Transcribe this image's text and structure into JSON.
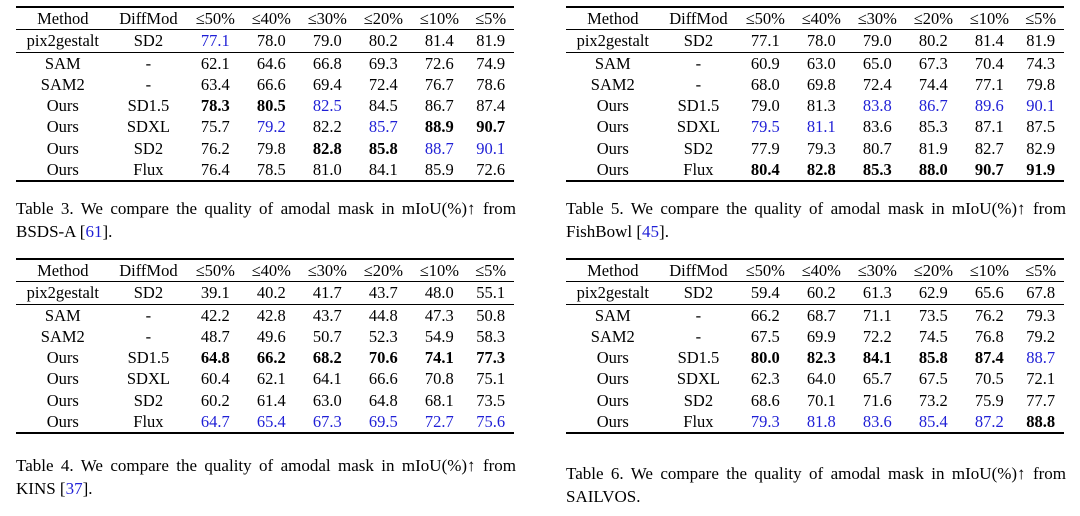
{
  "headers": [
    "Method",
    "DiffMod",
    "≤50%",
    "≤40%",
    "≤30%",
    "≤20%",
    "≤10%",
    "≤5%"
  ],
  "tables": [
    {
      "id": "table3",
      "rows": [
        {
          "cells": [
            "pix2gestalt",
            "SD2",
            "77.1",
            "78.0",
            "79.0",
            "80.2",
            "81.4",
            "81.9"
          ],
          "styles": [
            "",
            "",
            "blue",
            "",
            "",
            "",
            "",
            ""
          ],
          "sep": true
        },
        {
          "cells": [
            "SAM",
            "-",
            "62.1",
            "64.6",
            "66.8",
            "69.3",
            "72.6",
            "74.9"
          ],
          "styles": [
            "",
            "",
            "",
            "",
            "",
            "",
            "",
            ""
          ],
          "sep": true
        },
        {
          "cells": [
            "SAM2",
            "-",
            "63.4",
            "66.6",
            "69.4",
            "72.4",
            "76.7",
            "78.6"
          ],
          "styles": [
            "",
            "",
            "",
            "",
            "",
            "",
            "",
            ""
          ],
          "sep": false
        },
        {
          "cells": [
            "Ours",
            "SD1.5",
            "78.3",
            "80.5",
            "82.5",
            "84.5",
            "86.7",
            "87.4"
          ],
          "styles": [
            "",
            "",
            "bold",
            "bold",
            "blue",
            "",
            "",
            ""
          ],
          "sep": false
        },
        {
          "cells": [
            "Ours",
            "SDXL",
            "75.7",
            "79.2",
            "82.2",
            "85.7",
            "88.9",
            "90.7"
          ],
          "styles": [
            "",
            "",
            "",
            "blue",
            "",
            "blue",
            "bold",
            "bold"
          ],
          "sep": false
        },
        {
          "cells": [
            "Ours",
            "SD2",
            "76.2",
            "79.8",
            "82.8",
            "85.8",
            "88.7",
            "90.1"
          ],
          "styles": [
            "",
            "",
            "",
            "",
            "bold",
            "bold",
            "blue",
            "blue"
          ],
          "sep": false
        },
        {
          "cells": [
            "Ours",
            "Flux",
            "76.4",
            "78.5",
            "81.0",
            "84.1",
            "85.9",
            "72.6"
          ],
          "styles": [
            "",
            "",
            "",
            "",
            "",
            "",
            "",
            ""
          ],
          "sep": false
        }
      ],
      "caption": {
        "prefix": "Table 3.  We compare the quality of amodal mask in mIoU(%)↑ from BSDS-A [",
        "ref": "61",
        "suffix": "]."
      }
    },
    {
      "id": "table5",
      "rows": [
        {
          "cells": [
            "pix2gestalt",
            "SD2",
            "77.1",
            "78.0",
            "79.0",
            "80.2",
            "81.4",
            "81.9"
          ],
          "styles": [
            "",
            "",
            "",
            "",
            "",
            "",
            "",
            ""
          ],
          "sep": true
        },
        {
          "cells": [
            "SAM",
            "-",
            "60.9",
            "63.0",
            "65.0",
            "67.3",
            "70.4",
            "74.3"
          ],
          "styles": [
            "",
            "",
            "",
            "",
            "",
            "",
            "",
            ""
          ],
          "sep": true
        },
        {
          "cells": [
            "SAM2",
            "-",
            "68.0",
            "69.8",
            "72.4",
            "74.4",
            "77.1",
            "79.8"
          ],
          "styles": [
            "",
            "",
            "",
            "",
            "",
            "",
            "",
            ""
          ],
          "sep": false
        },
        {
          "cells": [
            "Ours",
            "SD1.5",
            "79.0",
            "81.3",
            "83.8",
            "86.7",
            "89.6",
            "90.1"
          ],
          "styles": [
            "",
            "",
            "",
            "",
            "blue",
            "blue",
            "blue",
            "blue"
          ],
          "sep": false
        },
        {
          "cells": [
            "Ours",
            "SDXL",
            "79.5",
            "81.1",
            "83.6",
            "85.3",
            "87.1",
            "87.5"
          ],
          "styles": [
            "",
            "",
            "blue",
            "blue",
            "",
            "",
            "",
            ""
          ],
          "sep": false
        },
        {
          "cells": [
            "Ours",
            "SD2",
            "77.9",
            "79.3",
            "80.7",
            "81.9",
            "82.7",
            "82.9"
          ],
          "styles": [
            "",
            "",
            "",
            "",
            "",
            "",
            "",
            ""
          ],
          "sep": false
        },
        {
          "cells": [
            "Ours",
            "Flux",
            "80.4",
            "82.8",
            "85.3",
            "88.0",
            "90.7",
            "91.9"
          ],
          "styles": [
            "",
            "",
            "bold",
            "bold",
            "bold",
            "bold",
            "bold",
            "bold"
          ],
          "sep": false
        }
      ],
      "caption": {
        "prefix": "Table 5.  We compare the quality of amodal mask in mIoU(%)↑ from FishBowl [",
        "ref": "45",
        "suffix": "]."
      }
    },
    {
      "id": "table4",
      "rows": [
        {
          "cells": [
            "pix2gestalt",
            "SD2",
            "39.1",
            "40.2",
            "41.7",
            "43.7",
            "48.0",
            "55.1"
          ],
          "styles": [
            "",
            "",
            "",
            "",
            "",
            "",
            "",
            ""
          ],
          "sep": true
        },
        {
          "cells": [
            "SAM",
            "-",
            "42.2",
            "42.8",
            "43.7",
            "44.8",
            "47.3",
            "50.8"
          ],
          "styles": [
            "",
            "",
            "",
            "",
            "",
            "",
            "",
            ""
          ],
          "sep": true
        },
        {
          "cells": [
            "SAM2",
            "-",
            "48.7",
            "49.6",
            "50.7",
            "52.3",
            "54.9",
            "58.3"
          ],
          "styles": [
            "",
            "",
            "",
            "",
            "",
            "",
            "",
            ""
          ],
          "sep": false
        },
        {
          "cells": [
            "Ours",
            "SD1.5",
            "64.8",
            "66.2",
            "68.2",
            "70.6",
            "74.1",
            "77.3"
          ],
          "styles": [
            "",
            "",
            "bold",
            "bold",
            "bold",
            "bold",
            "bold",
            "bold"
          ],
          "sep": false
        },
        {
          "cells": [
            "Ours",
            "SDXL",
            "60.4",
            "62.1",
            "64.1",
            "66.6",
            "70.8",
            "75.1"
          ],
          "styles": [
            "",
            "",
            "",
            "",
            "",
            "",
            "",
            ""
          ],
          "sep": false
        },
        {
          "cells": [
            "Ours",
            "SD2",
            "60.2",
            "61.4",
            "63.0",
            "64.8",
            "68.1",
            "73.5"
          ],
          "styles": [
            "",
            "",
            "",
            "",
            "",
            "",
            "",
            ""
          ],
          "sep": false
        },
        {
          "cells": [
            "Ours",
            "Flux",
            "64.7",
            "65.4",
            "67.3",
            "69.5",
            "72.7",
            "75.6"
          ],
          "styles": [
            "",
            "",
            "blue",
            "blue",
            "blue",
            "blue",
            "blue",
            "blue"
          ],
          "sep": false
        }
      ],
      "caption": {
        "prefix": "Table 4.  We compare the quality of amodal mask in mIoU(%)↑ from KINS [",
        "ref": "37",
        "suffix": "]."
      }
    },
    {
      "id": "table6",
      "rows": [
        {
          "cells": [
            "pix2gestalt",
            "SD2",
            "59.4",
            "60.2",
            "61.3",
            "62.9",
            "65.6",
            "67.8"
          ],
          "styles": [
            "",
            "",
            "",
            "",
            "",
            "",
            "",
            ""
          ],
          "sep": true
        },
        {
          "cells": [
            "SAM",
            "-",
            "66.2",
            "68.7",
            "71.1",
            "73.5",
            "76.2",
            "79.3"
          ],
          "styles": [
            "",
            "",
            "",
            "",
            "",
            "",
            "",
            ""
          ],
          "sep": true
        },
        {
          "cells": [
            "SAM2",
            "-",
            "67.5",
            "69.9",
            "72.2",
            "74.5",
            "76.8",
            "79.2"
          ],
          "styles": [
            "",
            "",
            "",
            "",
            "",
            "",
            "",
            ""
          ],
          "sep": false
        },
        {
          "cells": [
            "Ours",
            "SD1.5",
            "80.0",
            "82.3",
            "84.1",
            "85.8",
            "87.4",
            "88.7"
          ],
          "styles": [
            "",
            "",
            "bold",
            "bold",
            "bold",
            "bold",
            "bold",
            "blue"
          ],
          "sep": false
        },
        {
          "cells": [
            "Ours",
            "SDXL",
            "62.3",
            "64.0",
            "65.7",
            "67.5",
            "70.5",
            "72.1"
          ],
          "styles": [
            "",
            "",
            "",
            "",
            "",
            "",
            "",
            ""
          ],
          "sep": false
        },
        {
          "cells": [
            "Ours",
            "SD2",
            "68.6",
            "70.1",
            "71.6",
            "73.2",
            "75.9",
            "77.7"
          ],
          "styles": [
            "",
            "",
            "",
            "",
            "",
            "",
            "",
            ""
          ],
          "sep": false
        },
        {
          "cells": [
            "Ours",
            "Flux",
            "79.3",
            "81.8",
            "83.6",
            "85.4",
            "87.2",
            "88.8"
          ],
          "styles": [
            "",
            "",
            "blue",
            "blue",
            "blue",
            "blue",
            "blue",
            "bold"
          ],
          "sep": false
        }
      ],
      "caption": {
        "prefix": "Table 6.  We compare the quality of amodal mask in mIoU(%)↑ from SAILVOS.",
        "ref": "",
        "suffix": ""
      }
    }
  ]
}
